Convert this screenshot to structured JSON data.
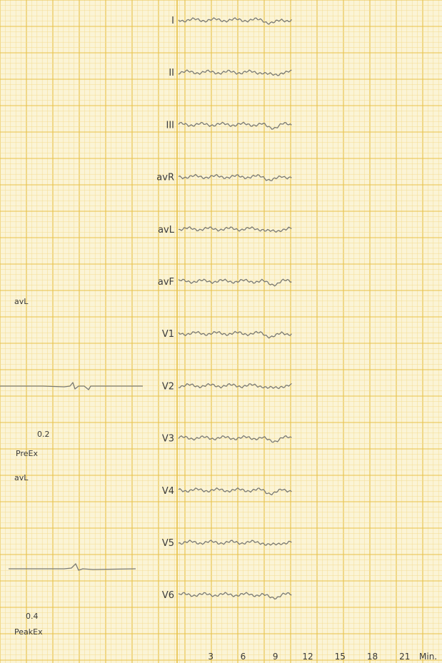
{
  "chart_data": {
    "type": "line",
    "title": "",
    "xlabel": "Min.",
    "ylabel": "",
    "x_ticks": [
      3,
      6,
      9,
      12,
      15,
      18,
      21
    ],
    "x_unit": "Min.",
    "xlim": [
      0,
      24
    ],
    "grid": true,
    "leads": [
      "I",
      "II",
      "III",
      "avR",
      "avL",
      "avF",
      "V1",
      "V2",
      "V3",
      "V4",
      "V5",
      "V6"
    ],
    "side_panel": {
      "top_lead": "avL",
      "value_pre": "0.2",
      "label_pre": "PreEx",
      "bottom_lead": "avL",
      "value_peak": "0.4",
      "label_peak": "PeakEx"
    },
    "colors": {
      "paper": "#fbf4d6",
      "grid_major": "#e8c24a",
      "grid_minor": "#f3dc92",
      "trace": "#7a7a74"
    }
  }
}
